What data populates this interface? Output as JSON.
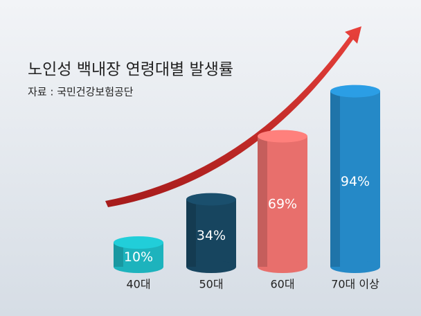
{
  "chart_data": {
    "type": "cylinder-bar",
    "title": "노인성 백내장 연령대별 발생률",
    "subtitle": "자료 : 국민건강보험공단",
    "categories": [
      "40대",
      "50대",
      "60대",
      "70대 이상"
    ],
    "values": [
      10,
      34,
      69,
      94
    ],
    "value_labels": [
      "10%",
      "34%",
      "69%",
      "94%"
    ],
    "colors": [
      "#1db3bd",
      "#17455f",
      "#e86f6c",
      "#2589c7"
    ]
  }
}
